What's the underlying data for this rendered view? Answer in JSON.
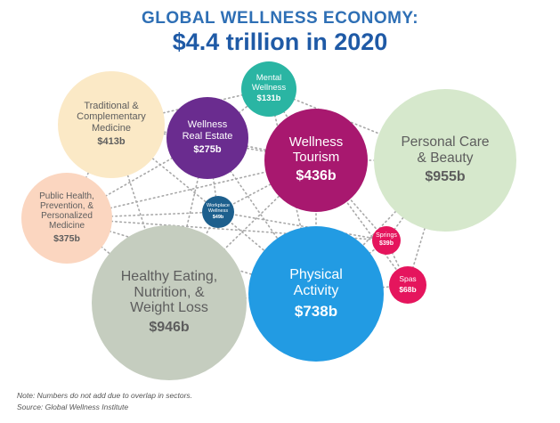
{
  "title": "GLOBAL WELLNESS ECONOMY:",
  "subtitle": "$4.4 trillion in 2020",
  "bubbles": {
    "traditional": {
      "label": [
        "Traditional &",
        "Complementary",
        "Medicine"
      ],
      "value": "$413b",
      "color": "#fbe9c6",
      "text_color": "#5d5d5d"
    },
    "public_health": {
      "label": [
        "Public Health,",
        "Prevention, &",
        "Personalized",
        "Medicine"
      ],
      "value": "$375b",
      "color": "#fbd6c0",
      "text_color": "#5d5d5d"
    },
    "healthy_eating": {
      "label": [
        "Healthy Eating,",
        "Nutrition, &",
        "Weight Loss"
      ],
      "value": "$946b",
      "color": "#c5cdbf",
      "text_color": "#5d5d5d"
    },
    "real_estate": {
      "label": [
        "Wellness",
        "Real Estate"
      ],
      "value": "$275b",
      "color": "#6a2c8f",
      "text_color": "#ffffff"
    },
    "mental": {
      "label": [
        "Mental",
        "Wellness"
      ],
      "value": "$131b",
      "color": "#2ab5a3",
      "text_color": "#ffffff"
    },
    "tourism": {
      "label": [
        "Wellness",
        "Tourism"
      ],
      "value": "$436b",
      "color": "#a8186f",
      "text_color": "#ffffff"
    },
    "workplace": {
      "label": [
        "Workplace",
        "Wellness"
      ],
      "value": "$49b",
      "color": "#1d5f8d",
      "text_color": "#ffffff"
    },
    "personal_care": {
      "label": [
        "Personal Care",
        "& Beauty"
      ],
      "value": "$955b",
      "color": "#d6e8cc",
      "text_color": "#5d5d5d"
    },
    "springs": {
      "label": [
        "Springs"
      ],
      "value": "$39b",
      "color": "#e5155d",
      "text_color": "#ffffff"
    },
    "spas": {
      "label": [
        "Spas"
      ],
      "value": "$68b",
      "color": "#e5155d",
      "text_color": "#ffffff"
    },
    "physical": {
      "label": [
        "Physical",
        "Activity"
      ],
      "value": "$738b",
      "color": "#229be3",
      "text_color": "#ffffff"
    }
  },
  "notes": {
    "note": "Note: Numbers do not add due to overlap in sectors.",
    "source": "Source: Global Wellness Institute"
  }
}
